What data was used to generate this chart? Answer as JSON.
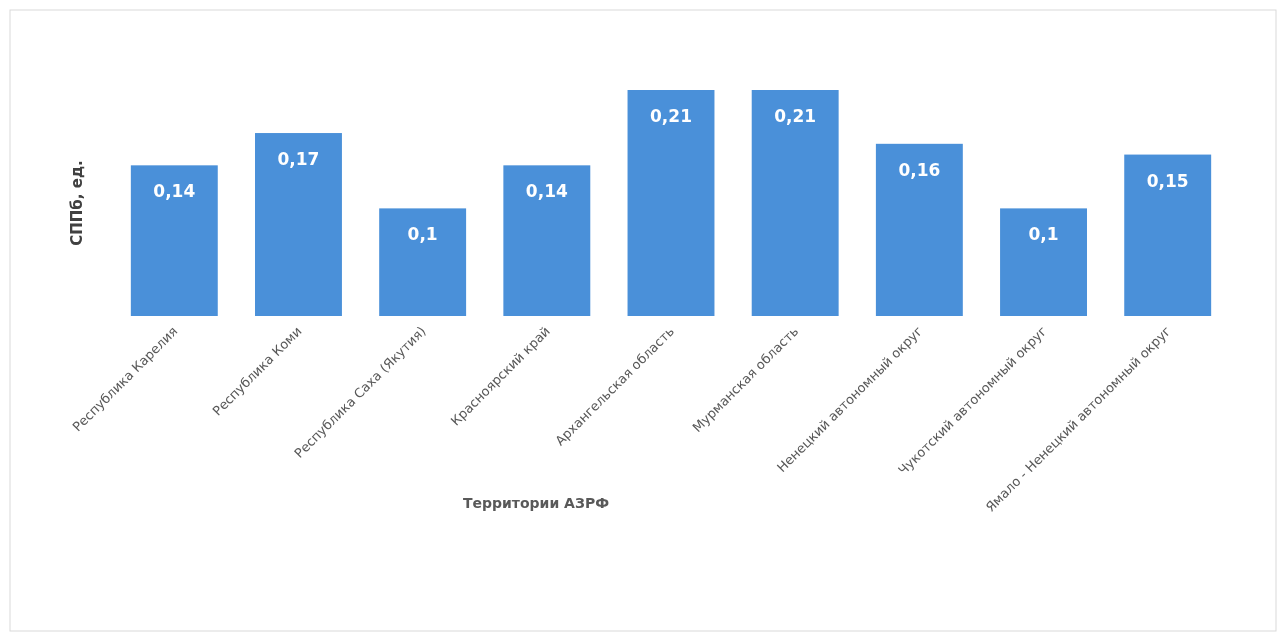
{
  "chart_data": {
    "type": "bar",
    "xlabel": "Территории АЗРФ",
    "ylabel": "СППб, ед.",
    "categories": [
      "Республика Карелия",
      "Республика Коми",
      "Республика Саха (Якутия)",
      "Красноярский край",
      "Архангельская область",
      "Мурманская область",
      "Ненецкий автономный округ",
      "Чукотский автономный округ",
      "Ямало - Ненецкий автономный округ"
    ],
    "values": [
      0.14,
      0.17,
      0.1,
      0.14,
      0.21,
      0.21,
      0.16,
      0.1,
      0.15
    ],
    "value_labels": [
      "0,14",
      "0,17",
      "0,1",
      "0,14",
      "0,21",
      "0,21",
      "0,16",
      "0,1",
      "0,15"
    ],
    "color": "#4a90d9",
    "legend": false,
    "grid": false
  }
}
